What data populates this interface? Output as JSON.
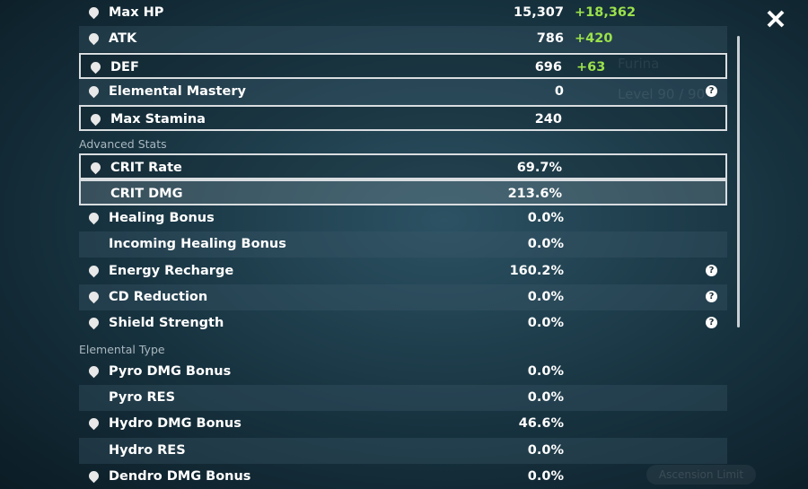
{
  "background": {
    "character": "Furina",
    "level": "Level 90 / 90",
    "button": "Ascension Limit"
  },
  "base_stats": [
    {
      "name": "Max HP",
      "value": "15,307",
      "bonus": "+18,362",
      "icon": true
    },
    {
      "name": "ATK",
      "value": "786",
      "bonus": "+420",
      "icon": true
    },
    {
      "name": "DEF",
      "value": "696",
      "bonus": "+63",
      "icon": true,
      "highlight": true
    },
    {
      "name": "Elemental Mastery",
      "value": "0",
      "icon": true,
      "help": true
    },
    {
      "name": "Max Stamina",
      "value": "240",
      "icon": true,
      "highlight": true
    }
  ],
  "advanced_stats": {
    "title": "Advanced Stats",
    "rows": [
      {
        "name": "CRIT Rate",
        "value": "69.7%",
        "icon": true,
        "highlight": true
      },
      {
        "name": "CRIT DMG",
        "value": "213.6%",
        "highlight": true,
        "selected": true
      },
      {
        "name": "Healing Bonus",
        "value": "0.0%",
        "icon": true
      },
      {
        "name": "Incoming Healing Bonus",
        "value": "0.0%"
      },
      {
        "name": "Energy Recharge",
        "value": "160.2%",
        "icon": true,
        "help": true
      },
      {
        "name": "CD Reduction",
        "value": "0.0%",
        "icon": true,
        "help": true
      },
      {
        "name": "Shield Strength",
        "value": "0.0%",
        "icon": true,
        "help": true
      }
    ]
  },
  "elemental_type": {
    "title": "Elemental Type",
    "rows": [
      {
        "name": "Pyro DMG Bonus",
        "value": "0.0%",
        "icon": true
      },
      {
        "name": "Pyro RES",
        "value": "0.0%"
      },
      {
        "name": "Hydro DMG Bonus",
        "value": "46.6%",
        "icon": true
      },
      {
        "name": "Hydro RES",
        "value": "0.0%"
      },
      {
        "name": "Dendro DMG Bonus",
        "value": "0.0%",
        "icon": true
      }
    ]
  }
}
